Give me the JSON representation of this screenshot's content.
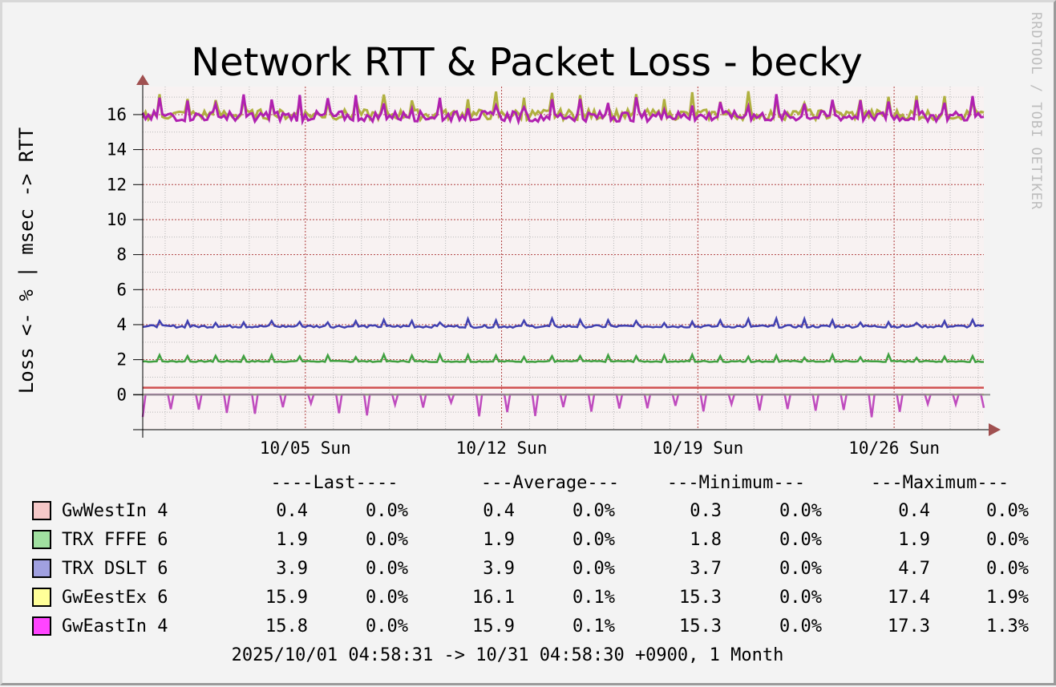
{
  "chart_data": {
    "type": "line",
    "title": "Network RTT & Packet Loss - becky",
    "ylabel": "Loss <- % | msec -> RTT",
    "watermark": "RRDTOOL / TOBI OETIKER",
    "ylim": [
      -2,
      17.6
    ],
    "yticks": [
      "0",
      "2",
      "4",
      "6",
      "8",
      "10",
      "12",
      "14",
      "16"
    ],
    "xlim_days": [
      0,
      30
    ],
    "xticks": [
      {
        "day": 5.8,
        "label": "10/05 Sun"
      },
      {
        "day": 12.8,
        "label": "10/12 Sun"
      },
      {
        "day": 19.8,
        "label": "10/19 Sun"
      },
      {
        "day": 26.8,
        "label": "10/26 Sun"
      }
    ],
    "grid": true,
    "legend_position": "bottom",
    "legend_header": [
      "----Last----",
      "---Average---",
      "---Minimum---",
      "---Maximum---"
    ],
    "series": [
      {
        "name": "GwWestIn 4",
        "color": "#f2c8c8",
        "line_color": "#d05050",
        "rtt": 0.4,
        "loss": 0.0,
        "swatch": "#f5c8c8",
        "last": "0.4",
        "last_pct": "0.0%",
        "avg": "0.4",
        "avg_pct": "0.0%",
        "min": "0.3",
        "min_pct": "0.0%",
        "max": "0.4",
        "max_pct": "0.0%"
      },
      {
        "name": "TRX FFFE 6",
        "color": "#40a040",
        "line_color": "#40a040",
        "rtt": 1.9,
        "loss": 0.0,
        "swatch": "#a0e0a0",
        "last": "1.9",
        "last_pct": "0.0%",
        "avg": "1.9",
        "avg_pct": "0.0%",
        "min": "1.8",
        "min_pct": "0.0%",
        "max": "1.9",
        "max_pct": "0.0%"
      },
      {
        "name": "TRX DSLT 6",
        "color": "#4040b0",
        "line_color": "#4040b0",
        "rtt": 3.9,
        "loss": 0.0,
        "swatch": "#a0a0e0",
        "last": "3.9",
        "last_pct": "0.0%",
        "avg": "3.9",
        "avg_pct": "0.0%",
        "min": "3.7",
        "min_pct": "0.0%",
        "max": "4.7",
        "max_pct": "0.0%"
      },
      {
        "name": "GwEestEx 6",
        "color": "#b0b040",
        "line_color": "#b0b040",
        "rtt": 16.0,
        "loss": 0.1,
        "swatch": "#ffff99",
        "last": "15.9",
        "last_pct": "0.0%",
        "avg": "16.1",
        "avg_pct": "0.1%",
        "min": "15.3",
        "min_pct": "0.0%",
        "max": "17.4",
        "max_pct": "1.9%"
      },
      {
        "name": "GwEastIn 4",
        "color": "#b020b0",
        "line_color": "#b020b0",
        "rtt": 15.9,
        "loss": 0.1,
        "swatch": "#ff44ff",
        "last": "15.8",
        "last_pct": "0.0%",
        "avg": "15.9",
        "avg_pct": "0.1%",
        "min": "15.3",
        "min_pct": "0.0%",
        "max": "17.3",
        "max_pct": "1.3%"
      }
    ],
    "time_range": "2025/10/01 04:58:31 -> 10/31 04:58:30 +0900, 1 Month"
  }
}
